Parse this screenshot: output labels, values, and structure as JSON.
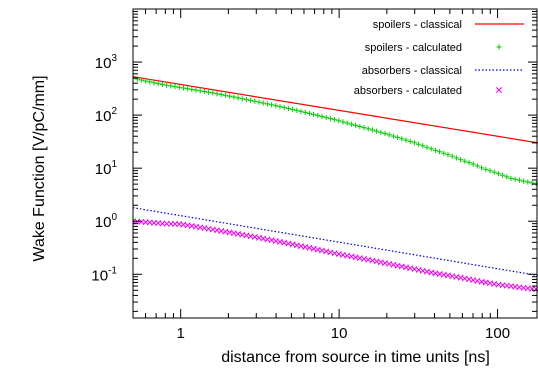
{
  "chart_data": {
    "type": "scatter",
    "title": "",
    "xlabel": "distance from source in time units [ns]",
    "ylabel": "Wake Function [V/pC/mm]",
    "xscale": "log",
    "yscale": "log",
    "xlim": [
      0.5,
      180
    ],
    "ylim": [
      0.015,
      10000
    ],
    "grid": false,
    "legend_position": "top-right",
    "x_ticks": [
      {
        "value": 1,
        "label": "1"
      },
      {
        "value": 10,
        "label": "10"
      },
      {
        "value": 100,
        "label": "100"
      }
    ],
    "y_ticks": [
      {
        "value": 0.1,
        "base": "10",
        "exp": "-1"
      },
      {
        "value": 1,
        "base": "10",
        "exp": "0"
      },
      {
        "value": 10,
        "base": "10",
        "exp": "1"
      },
      {
        "value": 100,
        "base": "10",
        "exp": "2"
      },
      {
        "value": 1000,
        "base": "10",
        "exp": "3"
      }
    ],
    "series": [
      {
        "name": "spoilers - classical",
        "kind": "line",
        "style": "solid",
        "color": "#ff0000",
        "x": [
          0.5,
          180
        ],
        "y": [
          530,
          30
        ]
      },
      {
        "name": "spoilers - calculated",
        "kind": "points",
        "marker": "+",
        "color": "#00cc00",
        "x": [
          0.5,
          0.6,
          0.7,
          0.8,
          1,
          1.5,
          2,
          3,
          5,
          7,
          10,
          15,
          20,
          30,
          40,
          50,
          60,
          70,
          80,
          100,
          120,
          150,
          180
        ],
        "y": [
          500,
          440,
          400,
          370,
          330,
          270,
          230,
          180,
          130,
          102,
          78,
          56,
          44,
          30,
          22,
          17.5,
          14,
          12,
          10,
          8,
          6.5,
          5.6,
          5
        ]
      },
      {
        "name": "absorbers - classical",
        "kind": "line",
        "style": "dotted",
        "color": "#0000cc",
        "x": [
          0.5,
          180
        ],
        "y": [
          1.8,
          0.095
        ]
      },
      {
        "name": "absorbers - calculated",
        "kind": "points",
        "marker": "x",
        "color": "#ee00ee",
        "x": [
          0.5,
          0.6,
          0.7,
          0.8,
          1,
          1.5,
          2,
          3,
          5,
          7,
          10,
          15,
          20,
          30,
          40,
          50,
          60,
          70,
          80,
          100,
          120,
          150,
          180
        ],
        "y": [
          1.0,
          0.96,
          0.93,
          0.9,
          0.88,
          0.72,
          0.62,
          0.5,
          0.37,
          0.3,
          0.24,
          0.19,
          0.16,
          0.125,
          0.105,
          0.094,
          0.085,
          0.078,
          0.072,
          0.064,
          0.06,
          0.055,
          0.052
        ]
      }
    ]
  }
}
